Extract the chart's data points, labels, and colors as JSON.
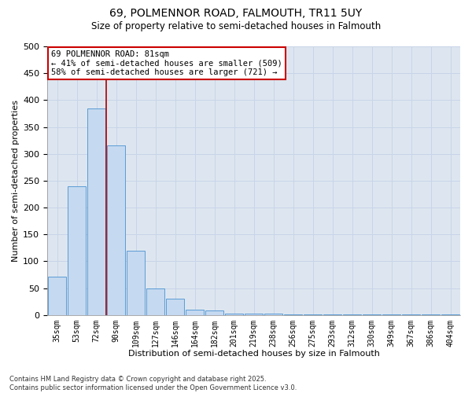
{
  "title_line1": "69, POLMENNOR ROAD, FALMOUTH, TR11 5UY",
  "title_line2": "Size of property relative to semi-detached houses in Falmouth",
  "xlabel": "Distribution of semi-detached houses by size in Falmouth",
  "ylabel": "Number of semi-detached properties",
  "categories": [
    "35sqm",
    "53sqm",
    "72sqm",
    "90sqm",
    "109sqm",
    "127sqm",
    "146sqm",
    "164sqm",
    "182sqm",
    "201sqm",
    "219sqm",
    "238sqm",
    "256sqm",
    "275sqm",
    "293sqm",
    "312sqm",
    "330sqm",
    "349sqm",
    "367sqm",
    "386sqm",
    "404sqm"
  ],
  "values": [
    72,
    240,
    385,
    315,
    120,
    50,
    30,
    10,
    8,
    2,
    2,
    2,
    1,
    1,
    1,
    1,
    1,
    1,
    1,
    1,
    1
  ],
  "bar_color": "#c5d9f0",
  "bar_edge_color": "#5b9bd5",
  "annotation_text": "69 POLMENNOR ROAD: 81sqm\n← 41% of semi-detached houses are smaller (509)\n58% of semi-detached houses are larger (721) →",
  "annotation_box_color": "white",
  "annotation_box_edge": "#cc0000",
  "vline_color": "#aa0000",
  "vline_x_idx": 2.5,
  "ylim": [
    0,
    500
  ],
  "yticks": [
    0,
    50,
    100,
    150,
    200,
    250,
    300,
    350,
    400,
    450,
    500
  ],
  "grid_color": "#c8d4e8",
  "bg_color": "#dde6f0",
  "footnote": "Contains HM Land Registry data © Crown copyright and database right 2025.\nContains public sector information licensed under the Open Government Licence v3.0."
}
